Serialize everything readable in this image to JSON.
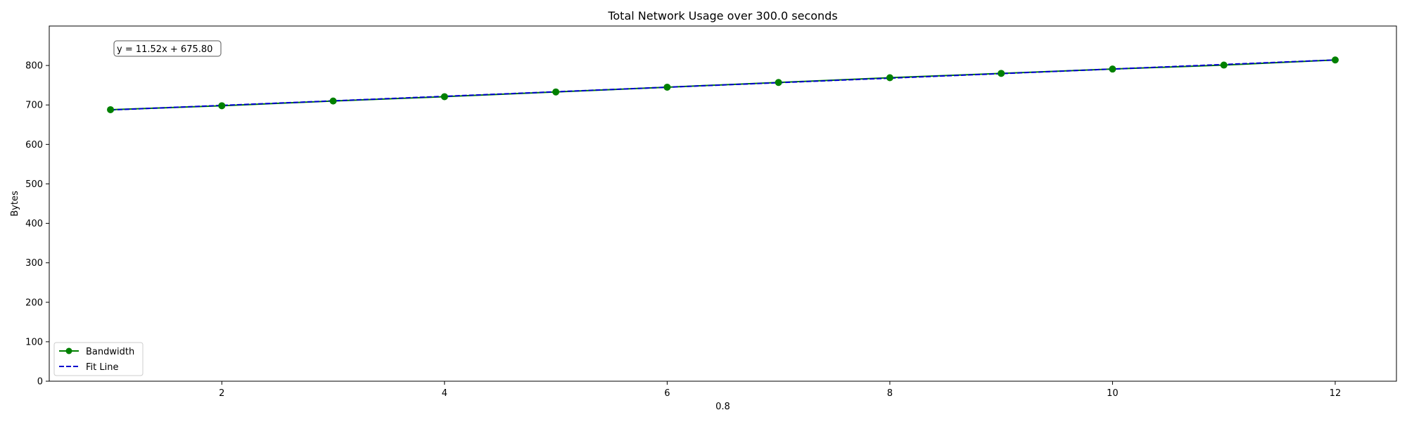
{
  "chart_data": {
    "type": "line",
    "title": "Total Network Usage over 300.0 seconds",
    "xlabel": "0.8",
    "ylabel": "Bytes",
    "xlim": [
      0.45,
      12.55
    ],
    "ylim": [
      0,
      900
    ],
    "xticks": [
      2,
      4,
      6,
      8,
      10,
      12
    ],
    "yticks": [
      0,
      100,
      200,
      300,
      400,
      500,
      600,
      700,
      800
    ],
    "grid": false,
    "legend_position": "lower left",
    "annotation": "y = 11.52x + 675.80",
    "series": [
      {
        "name": "Bandwidth",
        "style": "solid-marker",
        "color": "#008000",
        "x": [
          1,
          2,
          3,
          4,
          5,
          6,
          7,
          8,
          9,
          10,
          11,
          12
        ],
        "y": [
          688,
          698,
          710,
          721,
          733,
          745,
          757,
          769,
          780,
          791,
          801,
          814
        ]
      },
      {
        "name": "Fit Line",
        "style": "dashed",
        "color": "#0000cc",
        "fit": {
          "slope": 11.52,
          "intercept": 675.8
        }
      }
    ]
  }
}
